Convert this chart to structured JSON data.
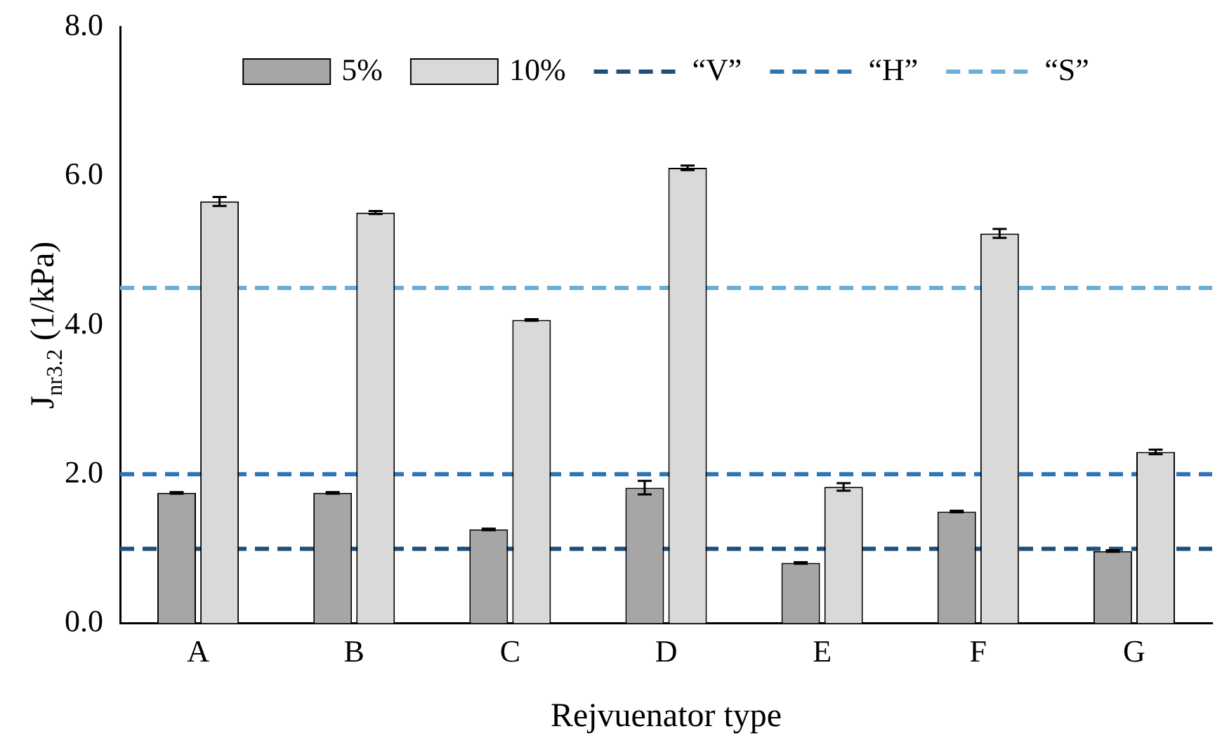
{
  "chart_data": {
    "type": "bar",
    "xlabel": "Rejvuenator type",
    "ylabel": "J$_{nr3.2}$ (1/kPa)",
    "categories": [
      "A",
      "B",
      "C",
      "D",
      "E",
      "F",
      "G"
    ],
    "series": [
      {
        "name": "5%",
        "color": "#a6a6a6",
        "values": [
          1.75,
          1.75,
          1.26,
          1.82,
          0.81,
          1.5,
          0.97
        ],
        "errors": [
          0.01,
          0.01,
          0.01,
          0.09,
          0.01,
          0.01,
          0.01
        ]
      },
      {
        "name": "10%",
        "color": "#d9d9d9",
        "values": [
          5.66,
          5.51,
          4.07,
          6.11,
          1.83,
          5.23,
          2.3
        ],
        "errors": [
          0.06,
          0.02,
          0.01,
          0.03,
          0.05,
          0.06,
          0.03
        ]
      }
    ],
    "ref_lines": [
      {
        "axis": "y",
        "value": 1.0,
        "label": "“V”",
        "color": "#1f4e79",
        "line_style": "dashed"
      },
      {
        "axis": "y",
        "value": 2.0,
        "label": "“H”",
        "color": "#2e75b6",
        "line_style": "dashed"
      },
      {
        "axis": "y",
        "value": 4.5,
        "label": "“S”",
        "color": "#6baed6",
        "line_style": "dashed"
      }
    ],
    "ylim": [
      0,
      8
    ],
    "yticks": [
      {
        "value": 0,
        "label": "0.0"
      },
      {
        "value": 2,
        "label": "2.0"
      },
      {
        "value": 4,
        "label": "4.0"
      },
      {
        "value": 6,
        "label": "6.0"
      },
      {
        "value": 8,
        "label": "8.0"
      }
    ],
    "grid": false,
    "legend": "top"
  }
}
